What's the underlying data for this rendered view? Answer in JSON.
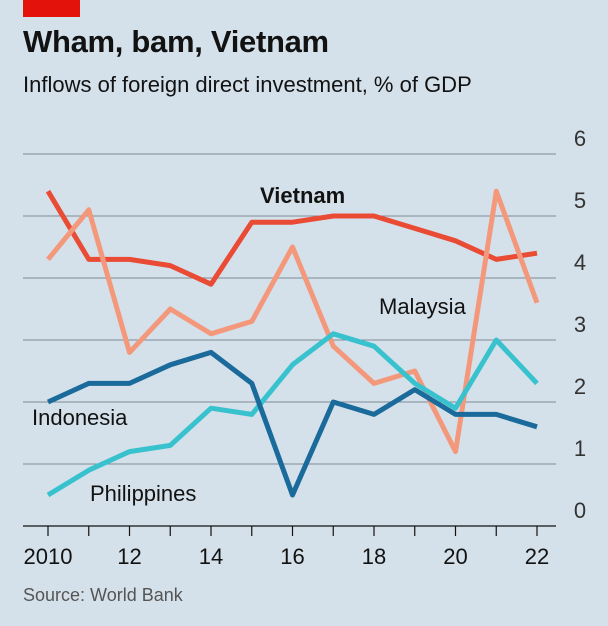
{
  "header": {
    "title": "Wham, bam, Vietnam",
    "subtitle": "Inflows of foreign direct investment, % of GDP"
  },
  "footer": {
    "source": "Source: World Bank"
  },
  "chart_data": {
    "type": "line",
    "title": "Wham, bam, Vietnam",
    "subtitle": "Inflows of foreign direct investment, % of GDP",
    "x": [
      2010,
      2011,
      2012,
      2013,
      2014,
      2015,
      2016,
      2017,
      2018,
      2019,
      2020,
      2021,
      2022
    ],
    "x_tick_labels": [
      "2010",
      "12",
      "14",
      "16",
      "18",
      "20",
      "22"
    ],
    "x_tick_values": [
      2010,
      2012,
      2014,
      2016,
      2018,
      2020,
      2022
    ],
    "ylim": [
      0,
      6
    ],
    "y_ticks": [
      0,
      1,
      2,
      3,
      4,
      5,
      6
    ],
    "y_axis_side": "right",
    "grid": true,
    "legend": "inline labels",
    "series": [
      {
        "name": "Vietnam",
        "color": "#e94b35",
        "bold_label": true,
        "values": [
          5.4,
          4.3,
          4.3,
          4.2,
          3.9,
          4.9,
          4.9,
          5.0,
          5.0,
          4.8,
          4.6,
          4.3,
          4.4
        ]
      },
      {
        "name": "Malaysia",
        "color": "#f4987c",
        "bold_label": false,
        "values": [
          4.3,
          5.1,
          2.8,
          3.5,
          3.1,
          3.3,
          4.5,
          2.9,
          2.3,
          2.5,
          1.2,
          5.4,
          3.6
        ]
      },
      {
        "name": "Philippines",
        "color": "#38c2ce",
        "bold_label": false,
        "values": [
          0.5,
          0.9,
          1.2,
          1.3,
          1.9,
          1.8,
          2.6,
          3.1,
          2.9,
          2.3,
          1.9,
          3.0,
          2.3
        ]
      },
      {
        "name": "Indonesia",
        "color": "#1a6b9b",
        "bold_label": false,
        "values": [
          2.0,
          2.3,
          2.3,
          2.6,
          2.8,
          2.3,
          0.5,
          2.0,
          1.8,
          2.2,
          1.8,
          1.8,
          1.6
        ]
      }
    ]
  }
}
